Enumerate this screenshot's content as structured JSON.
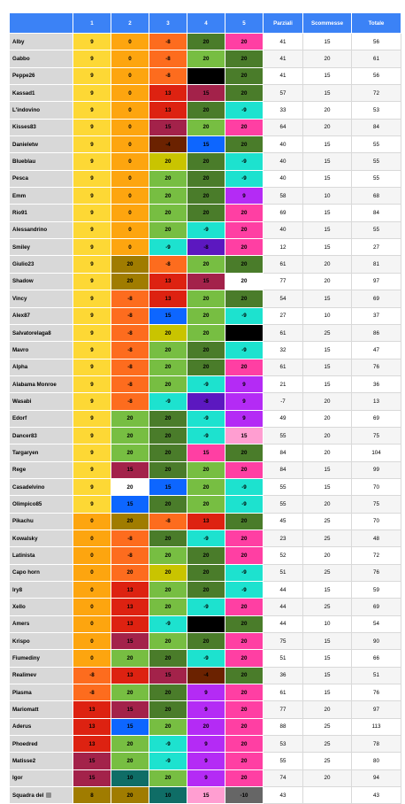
{
  "headers": [
    "",
    "1",
    "2",
    "3",
    "4",
    "5",
    "Parziali",
    "Scommesse",
    "Totale"
  ],
  "colors": {
    "yellow": "#fdd835",
    "orange": "#fda50f",
    "darkorange": "#fd6c1e",
    "red": "#dd2211",
    "maroon": "#a3224a",
    "olive": "#a07c00",
    "lime": "#c9c400",
    "green": "#77be42",
    "darkgreen": "#4a7c2a",
    "teal": "#1de2cf",
    "blue": "#0d66ff",
    "purple": "#5c18c0",
    "violet": "#b42bf5",
    "magenta": "#ff3fa3",
    "pink": "#ff9ed1",
    "black": "#000000",
    "white": "#ffffff",
    "brown": "#6b2200",
    "darkteal": "#0f6d66",
    "gray": "#666666"
  },
  "rows": [
    {
      "name": "Alby",
      "vals": [
        "9",
        "0",
        "-8",
        "20",
        "20"
      ],
      "bg": [
        "yellow",
        "orange",
        "darkorange",
        "darkgreen",
        "magenta"
      ],
      "p": "41",
      "s": "15",
      "t": "56"
    },
    {
      "name": "Gabbo",
      "vals": [
        "9",
        "0",
        "-8",
        "20",
        "20"
      ],
      "bg": [
        "yellow",
        "orange",
        "darkorange",
        "green",
        "darkgreen"
      ],
      "p": "41",
      "s": "20",
      "t": "61"
    },
    {
      "name": "Peppe26",
      "vals": [
        "9",
        "0",
        "-8",
        "20",
        "20"
      ],
      "bg": [
        "yellow",
        "orange",
        "darkorange",
        "black",
        "darkgreen"
      ],
      "p": "41",
      "s": "15",
      "t": "56"
    },
    {
      "name": "Kassad1",
      "vals": [
        "9",
        "0",
        "13",
        "15",
        "20"
      ],
      "bg": [
        "yellow",
        "orange",
        "red",
        "maroon",
        "darkgreen"
      ],
      "p": "57",
      "s": "15",
      "t": "72"
    },
    {
      "name": "L'indovino",
      "vals": [
        "9",
        "0",
        "13",
        "20",
        "-9"
      ],
      "bg": [
        "yellow",
        "orange",
        "red",
        "darkgreen",
        "teal"
      ],
      "p": "33",
      "s": "20",
      "t": "53"
    },
    {
      "name": "Kisses83",
      "vals": [
        "9",
        "0",
        "15",
        "20",
        "20"
      ],
      "bg": [
        "yellow",
        "orange",
        "maroon",
        "green",
        "magenta"
      ],
      "p": "64",
      "s": "20",
      "t": "84"
    },
    {
      "name": "Danieletw",
      "vals": [
        "9",
        "0",
        "-4",
        "15",
        "20"
      ],
      "bg": [
        "yellow",
        "orange",
        "brown",
        "blue",
        "darkgreen"
      ],
      "p": "40",
      "s": "15",
      "t": "55"
    },
    {
      "name": "Blueblau",
      "vals": [
        "9",
        "0",
        "20",
        "20",
        "-9"
      ],
      "bg": [
        "yellow",
        "orange",
        "lime",
        "darkgreen",
        "teal"
      ],
      "p": "40",
      "s": "15",
      "t": "55"
    },
    {
      "name": "Pesca",
      "vals": [
        "9",
        "0",
        "20",
        "20",
        "-9"
      ],
      "bg": [
        "yellow",
        "orange",
        "green",
        "darkgreen",
        "teal"
      ],
      "p": "40",
      "s": "15",
      "t": "55"
    },
    {
      "name": "Emm",
      "vals": [
        "9",
        "0",
        "20",
        "20",
        "9"
      ],
      "bg": [
        "yellow",
        "orange",
        "green",
        "darkgreen",
        "violet"
      ],
      "p": "58",
      "s": "10",
      "t": "68"
    },
    {
      "name": "Rio91",
      "vals": [
        "9",
        "0",
        "20",
        "20",
        "20"
      ],
      "bg": [
        "yellow",
        "orange",
        "green",
        "darkgreen",
        "magenta"
      ],
      "p": "69",
      "s": "15",
      "t": "84"
    },
    {
      "name": "Alessandrino",
      "vals": [
        "9",
        "0",
        "20",
        "-9",
        "20"
      ],
      "bg": [
        "yellow",
        "orange",
        "green",
        "teal",
        "magenta"
      ],
      "p": "40",
      "s": "15",
      "t": "55"
    },
    {
      "name": "Smiley",
      "vals": [
        "9",
        "0",
        "-9",
        "-8",
        "20"
      ],
      "bg": [
        "yellow",
        "orange",
        "teal",
        "purple",
        "magenta"
      ],
      "p": "12",
      "s": "15",
      "t": "27"
    },
    {
      "name": "Giulio23",
      "vals": [
        "9",
        "20",
        "-8",
        "20",
        "20"
      ],
      "bg": [
        "yellow",
        "olive",
        "darkorange",
        "green",
        "darkgreen"
      ],
      "p": "61",
      "s": "20",
      "t": "81"
    },
    {
      "name": "Shadow",
      "vals": [
        "9",
        "20",
        "13",
        "15",
        "20"
      ],
      "bg": [
        "yellow",
        "olive",
        "red",
        "maroon",
        "white"
      ],
      "p": "77",
      "s": "20",
      "t": "97"
    },
    {
      "name": "Vincy",
      "vals": [
        "9",
        "-8",
        "13",
        "20",
        "20"
      ],
      "bg": [
        "yellow",
        "darkorange",
        "red",
        "green",
        "darkgreen"
      ],
      "p": "54",
      "s": "15",
      "t": "69"
    },
    {
      "name": "Alex87",
      "vals": [
        "9",
        "-8",
        "15",
        "20",
        "-9"
      ],
      "bg": [
        "yellow",
        "darkorange",
        "blue",
        "green",
        "teal"
      ],
      "p": "27",
      "s": "10",
      "t": "37"
    },
    {
      "name": "Salvatorelaga8",
      "vals": [
        "9",
        "-8",
        "20",
        "20",
        "20"
      ],
      "bg": [
        "yellow",
        "darkorange",
        "lime",
        "green",
        "black"
      ],
      "p": "61",
      "s": "25",
      "t": "86"
    },
    {
      "name": "Mavro",
      "vals": [
        "9",
        "-8",
        "20",
        "20",
        "-9"
      ],
      "bg": [
        "yellow",
        "darkorange",
        "green",
        "darkgreen",
        "teal"
      ],
      "p": "32",
      "s": "15",
      "t": "47"
    },
    {
      "name": "Alpha",
      "vals": [
        "9",
        "-8",
        "20",
        "20",
        "20"
      ],
      "bg": [
        "yellow",
        "darkorange",
        "green",
        "darkgreen",
        "magenta"
      ],
      "p": "61",
      "s": "15",
      "t": "76"
    },
    {
      "name": "Alabama Monroe",
      "vals": [
        "9",
        "-8",
        "20",
        "-9",
        "9"
      ],
      "bg": [
        "yellow",
        "darkorange",
        "green",
        "teal",
        "violet"
      ],
      "p": "21",
      "s": "15",
      "t": "36"
    },
    {
      "name": "Wasabi",
      "vals": [
        "9",
        "-8",
        "-9",
        "-8",
        "9"
      ],
      "bg": [
        "yellow",
        "darkorange",
        "teal",
        "purple",
        "violet"
      ],
      "p": "-7",
      "s": "20",
      "t": "13"
    },
    {
      "name": "Edorf",
      "vals": [
        "9",
        "20",
        "20",
        "-9",
        "9"
      ],
      "bg": [
        "yellow",
        "green",
        "darkgreen",
        "teal",
        "violet"
      ],
      "p": "49",
      "s": "20",
      "t": "69"
    },
    {
      "name": "Dancer83",
      "vals": [
        "9",
        "20",
        "20",
        "-9",
        "15"
      ],
      "bg": [
        "yellow",
        "green",
        "darkgreen",
        "teal",
        "pink"
      ],
      "p": "55",
      "s": "20",
      "t": "75"
    },
    {
      "name": "Targaryen",
      "vals": [
        "9",
        "20",
        "20",
        "15",
        "20"
      ],
      "bg": [
        "yellow",
        "green",
        "darkgreen",
        "magenta",
        "darkgreen"
      ],
      "p": "84",
      "s": "20",
      "t": "104"
    },
    {
      "name": "Rege",
      "vals": [
        "9",
        "15",
        "20",
        "20",
        "20"
      ],
      "bg": [
        "yellow",
        "maroon",
        "darkgreen",
        "green",
        "magenta"
      ],
      "p": "84",
      "s": "15",
      "t": "99"
    },
    {
      "name": "Casadelvino",
      "vals": [
        "9",
        "20",
        "15",
        "20",
        "-9"
      ],
      "bg": [
        "yellow",
        "white",
        "blue",
        "green",
        "teal"
      ],
      "p": "55",
      "s": "15",
      "t": "70"
    },
    {
      "name": "Olimpico85",
      "vals": [
        "9",
        "15",
        "20",
        "20",
        "-9"
      ],
      "bg": [
        "yellow",
        "blue",
        "darkgreen",
        "green",
        "teal"
      ],
      "p": "55",
      "s": "20",
      "t": "75"
    },
    {
      "name": "Pikachu",
      "vals": [
        "0",
        "20",
        "-8",
        "13",
        "20"
      ],
      "bg": [
        "orange",
        "olive",
        "darkorange",
        "red",
        "darkgreen"
      ],
      "p": "45",
      "s": "25",
      "t": "70"
    },
    {
      "name": "Kowalsky",
      "vals": [
        "0",
        "-8",
        "20",
        "-9",
        "20"
      ],
      "bg": [
        "orange",
        "darkorange",
        "darkgreen",
        "teal",
        "magenta"
      ],
      "p": "23",
      "s": "25",
      "t": "48"
    },
    {
      "name": "Latinista",
      "vals": [
        "0",
        "-8",
        "20",
        "20",
        "20"
      ],
      "bg": [
        "orange",
        "darkorange",
        "green",
        "darkgreen",
        "magenta"
      ],
      "p": "52",
      "s": "20",
      "t": "72"
    },
    {
      "name": "Capo horn",
      "vals": [
        "0",
        "20",
        "20",
        "20",
        "-9"
      ],
      "bg": [
        "orange",
        "darkorange",
        "lime",
        "darkgreen",
        "teal"
      ],
      "p": "51",
      "s": "25",
      "t": "76"
    },
    {
      "name": "Iry8",
      "vals": [
        "0",
        "13",
        "20",
        "20",
        "-9"
      ],
      "bg": [
        "orange",
        "red",
        "green",
        "darkgreen",
        "teal"
      ],
      "p": "44",
      "s": "15",
      "t": "59"
    },
    {
      "name": "Xello",
      "vals": [
        "0",
        "13",
        "20",
        "-9",
        "20"
      ],
      "bg": [
        "orange",
        "red",
        "green",
        "teal",
        "magenta"
      ],
      "p": "44",
      "s": "25",
      "t": "69"
    },
    {
      "name": "Amers",
      "vals": [
        "0",
        "13",
        "-9",
        "20",
        "20"
      ],
      "bg": [
        "orange",
        "red",
        "teal",
        "black",
        "darkgreen"
      ],
      "p": "44",
      "s": "10",
      "t": "54"
    },
    {
      "name": "Krispo",
      "vals": [
        "0",
        "15",
        "20",
        "20",
        "20"
      ],
      "bg": [
        "orange",
        "maroon",
        "green",
        "darkgreen",
        "magenta"
      ],
      "p": "75",
      "s": "15",
      "t": "90"
    },
    {
      "name": "Fiumediny",
      "vals": [
        "0",
        "20",
        "20",
        "-9",
        "20"
      ],
      "bg": [
        "orange",
        "green",
        "darkgreen",
        "teal",
        "magenta"
      ],
      "p": "51",
      "s": "15",
      "t": "66"
    },
    {
      "name": "Realimev",
      "vals": [
        "-8",
        "13",
        "15",
        "-4",
        "20"
      ],
      "bg": [
        "darkorange",
        "red",
        "maroon",
        "brown",
        "darkgreen"
      ],
      "p": "36",
      "s": "15",
      "t": "51"
    },
    {
      "name": "Plasma",
      "vals": [
        "-8",
        "20",
        "20",
        "9",
        "20"
      ],
      "bg": [
        "darkorange",
        "green",
        "darkgreen",
        "violet",
        "magenta"
      ],
      "p": "61",
      "s": "15",
      "t": "76"
    },
    {
      "name": "Mariomatt",
      "vals": [
        "13",
        "15",
        "20",
        "9",
        "20"
      ],
      "bg": [
        "red",
        "maroon",
        "darkgreen",
        "violet",
        "magenta"
      ],
      "p": "77",
      "s": "20",
      "t": "97"
    },
    {
      "name": "Aderus",
      "vals": [
        "13",
        "15",
        "20",
        "20",
        "20"
      ],
      "bg": [
        "red",
        "blue",
        "green",
        "violet",
        "magenta"
      ],
      "p": "88",
      "s": "25",
      "t": "113"
    },
    {
      "name": "Phoedred",
      "vals": [
        "13",
        "20",
        "-9",
        "9",
        "20"
      ],
      "bg": [
        "red",
        "green",
        "teal",
        "violet",
        "magenta"
      ],
      "p": "53",
      "s": "25",
      "t": "78"
    },
    {
      "name": "Matisse2",
      "vals": [
        "15",
        "20",
        "-9",
        "9",
        "20"
      ],
      "bg": [
        "maroon",
        "green",
        "teal",
        "violet",
        "magenta"
      ],
      "p": "55",
      "s": "25",
      "t": "80"
    },
    {
      "name": "Igor",
      "vals": [
        "15",
        "10",
        "20",
        "9",
        "20"
      ],
      "bg": [
        "maroon",
        "darkteal",
        "green",
        "violet",
        "magenta"
      ],
      "p": "74",
      "s": "20",
      "t": "94"
    },
    {
      "name": "Squadra del",
      "trash": true,
      "vals": [
        "8",
        "20",
        "10",
        "15",
        "-10"
      ],
      "bg": [
        "olive",
        "olive",
        "darkteal",
        "pink",
        "gray"
      ],
      "p": "43",
      "s": "",
      "t": "43"
    }
  ]
}
